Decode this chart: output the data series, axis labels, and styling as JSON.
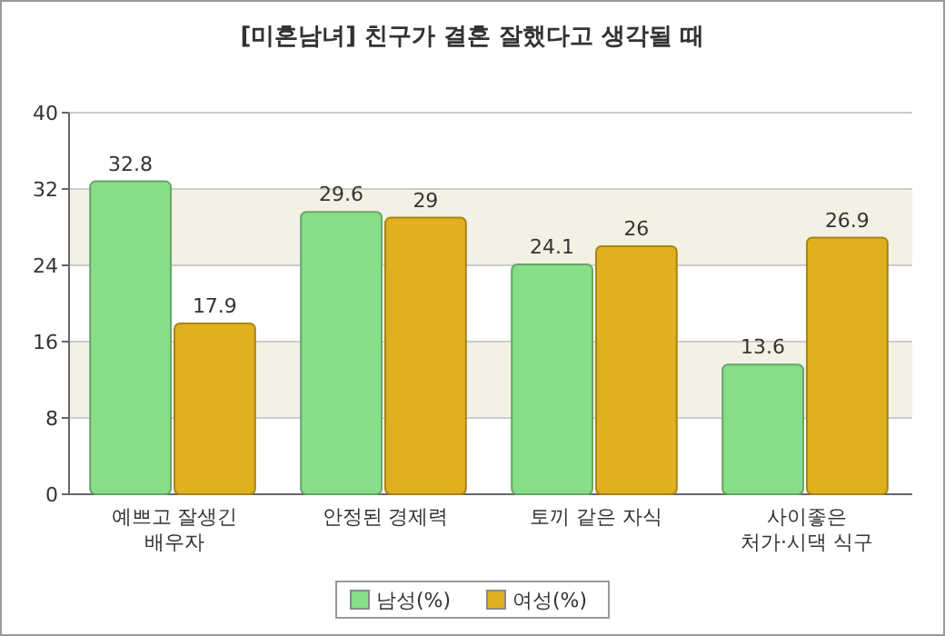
{
  "chart_data": {
    "type": "bar",
    "title": "[미혼남녀] 친구가 결혼 잘했다고 생각될 때",
    "categories": [
      "예쁘고 잘생긴\n배우자",
      "안정된 경제력",
      "토끼 같은 자식",
      "사이좋은\n처가·시댁 식구"
    ],
    "series": [
      {
        "name": "남성(%)",
        "color": "#88dd88",
        "values": [
          32.8,
          29.6,
          24.1,
          13.6
        ]
      },
      {
        "name": "여성(%)",
        "color": "#e0b020",
        "values": [
          17.9,
          29,
          26,
          26.9
        ]
      }
    ],
    "ylim": [
      0,
      40
    ],
    "yticks": [
      0,
      8,
      16,
      24,
      32,
      40
    ],
    "grid": "y",
    "legend": "bottom",
    "data_labels": true
  }
}
